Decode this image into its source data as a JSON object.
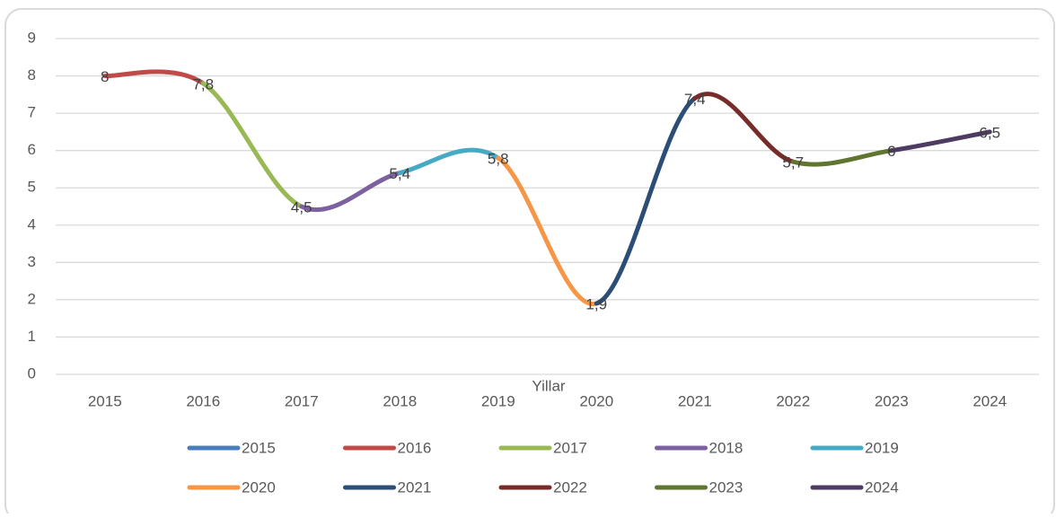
{
  "chart_data": {
    "type": "line",
    "x_label": "Yillar",
    "categories": [
      "2015",
      "2016",
      "2017",
      "2018",
      "2019",
      "2020",
      "2021",
      "2022",
      "2023",
      "2024"
    ],
    "values": [
      8,
      7.8,
      4.5,
      5.4,
      5.8,
      1.9,
      7.4,
      5.7,
      6,
      6.5
    ],
    "value_labels": [
      "8",
      "7,8",
      "4,5",
      "5,4",
      "5,8",
      "1,9",
      "7,4",
      "5,7",
      "6",
      "6,5"
    ],
    "series": [
      {
        "name": "2015",
        "color": "#4a7ebb"
      },
      {
        "name": "2016",
        "color": "#be4b48"
      },
      {
        "name": "2017",
        "color": "#98b954"
      },
      {
        "name": "2018",
        "color": "#7d60a0"
      },
      {
        "name": "2019",
        "color": "#46aac5"
      },
      {
        "name": "2020",
        "color": "#f79646"
      },
      {
        "name": "2021",
        "color": "#2c4d75"
      },
      {
        "name": "2022",
        "color": "#772c2a"
      },
      {
        "name": "2023",
        "color": "#5f7530"
      },
      {
        "name": "2024",
        "color": "#4d3b62"
      }
    ],
    "ylim": [
      0,
      9
    ],
    "yticks": [
      0,
      1,
      2,
      3,
      4,
      5,
      6,
      7,
      8,
      9
    ],
    "grid": true,
    "smooth": true,
    "legend": "bottom"
  }
}
